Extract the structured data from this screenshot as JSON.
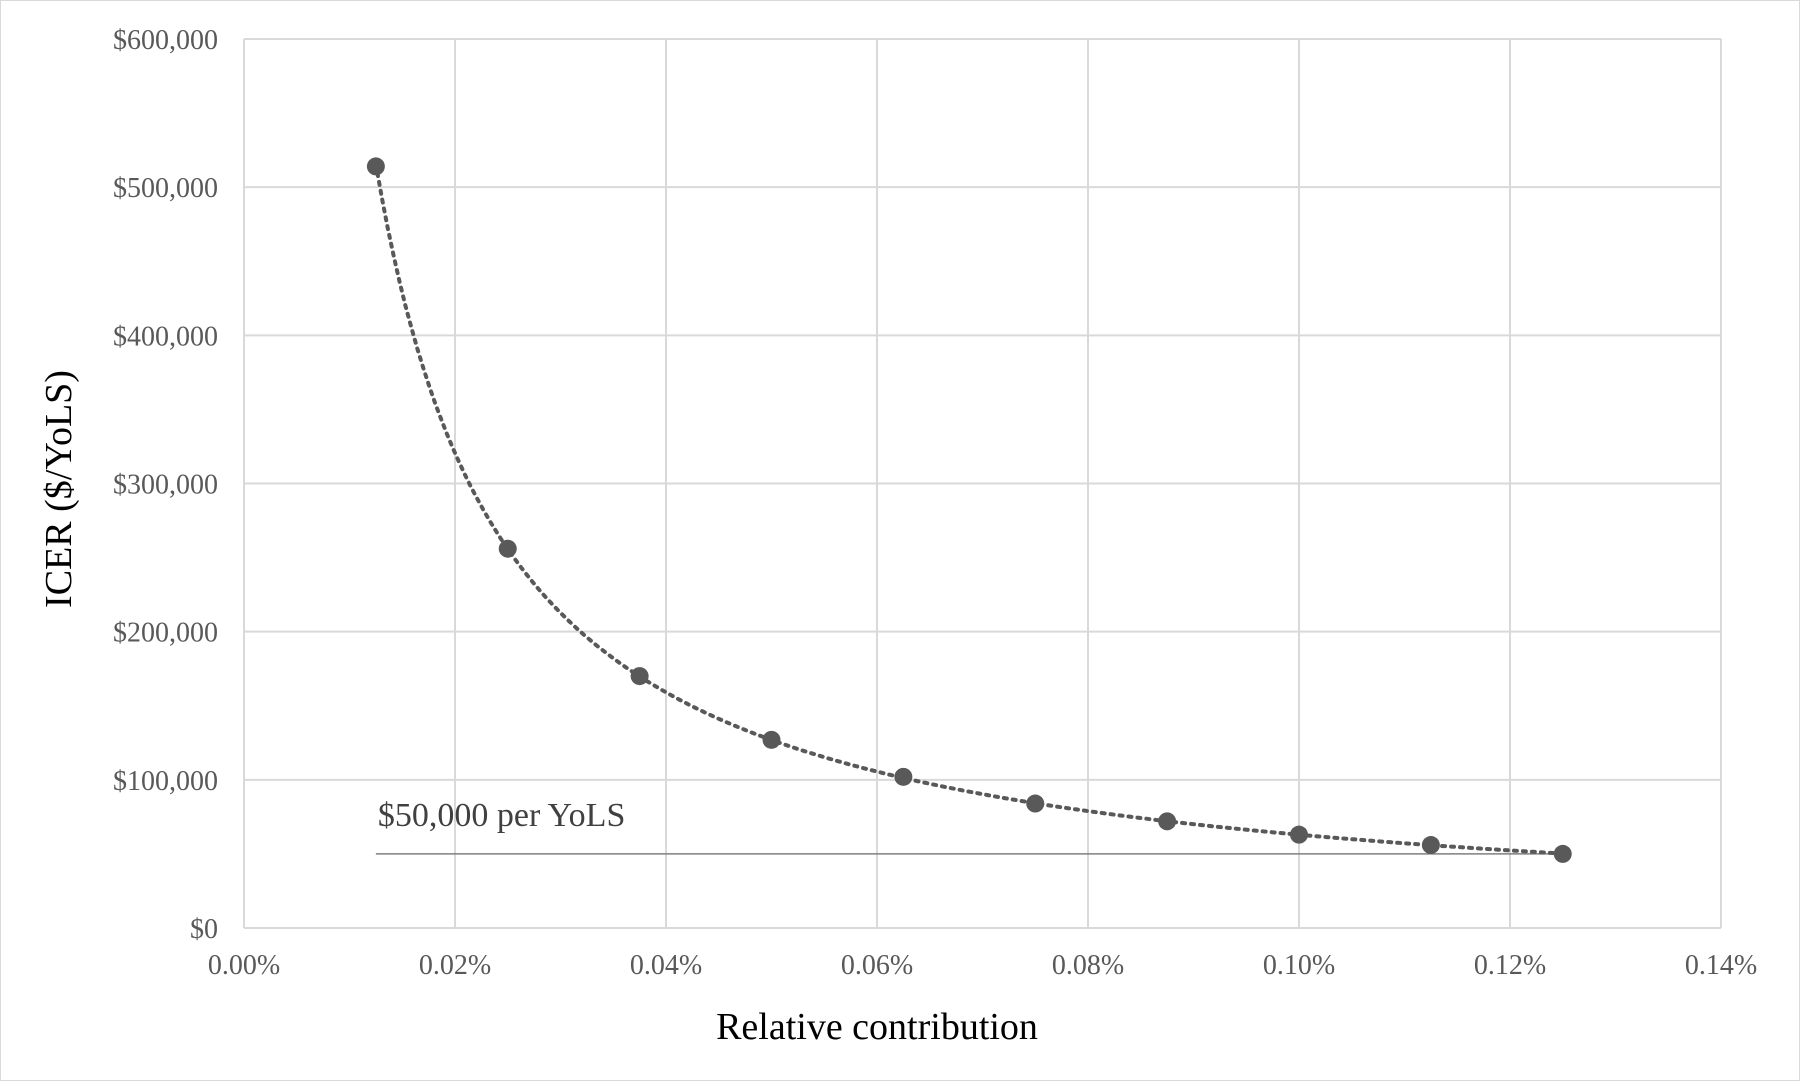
{
  "chart_data": {
    "type": "scatter",
    "xlabel": "Relative contribution",
    "ylabel": "ICER ($/YoLS)",
    "xlim": [
      0,
      0.14
    ],
    "ylim": [
      0,
      600000
    ],
    "x_ticks": [
      0,
      0.02,
      0.04,
      0.06,
      0.08,
      0.1,
      0.12,
      0.14
    ],
    "x_tick_labels": [
      "0.00%",
      "0.02%",
      "0.04%",
      "0.06%",
      "0.08%",
      "0.10%",
      "0.12%",
      "0.14%"
    ],
    "y_ticks": [
      0,
      100000,
      200000,
      300000,
      400000,
      500000,
      600000
    ],
    "y_tick_labels": [
      "$0",
      "$100,000",
      "$200,000",
      "$300,000",
      "$400,000",
      "$500,000",
      "$600,000"
    ],
    "grid": true,
    "legend": "none",
    "series": [
      {
        "points": [
          {
            "x": 0.0125,
            "y": 514000
          },
          {
            "x": 0.025,
            "y": 256000
          },
          {
            "x": 0.0375,
            "y": 170000
          },
          {
            "x": 0.05,
            "y": 127000
          },
          {
            "x": 0.0625,
            "y": 102000
          },
          {
            "x": 0.075,
            "y": 84000
          },
          {
            "x": 0.0875,
            "y": 72000
          },
          {
            "x": 0.1,
            "y": 63000
          },
          {
            "x": 0.1125,
            "y": 56000
          },
          {
            "x": 0.125,
            "y": 50000
          }
        ],
        "marker_color": "#595959",
        "trendline": "power",
        "trendline_style": "dotted"
      }
    ],
    "reference_line": {
      "y": 50000,
      "x_start": 0.0125,
      "x_end": 0.125,
      "label": "$50,000 per YoLS",
      "color": "#7f7f7f"
    },
    "gridline_color": "#d9d9d9"
  }
}
